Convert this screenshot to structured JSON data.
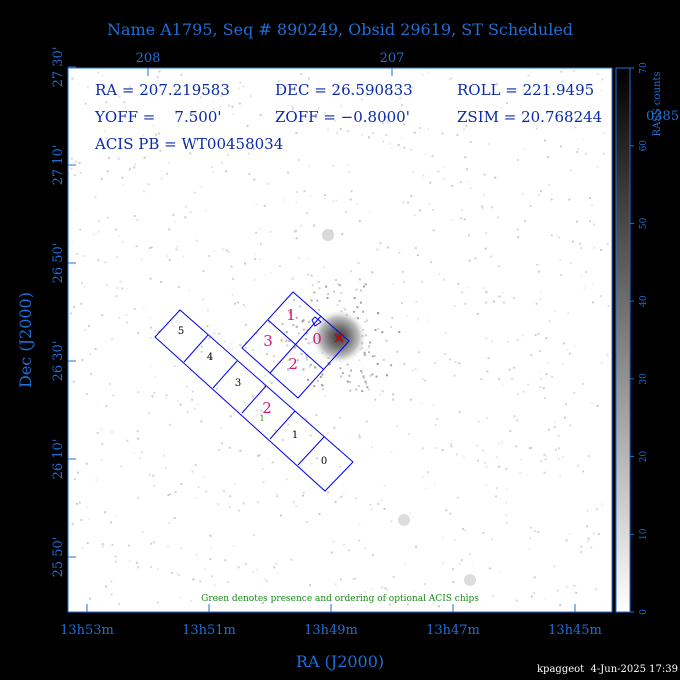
{
  "title": "Name A1795, Seq # 890249, Obsid 29619, ST Scheduled",
  "top_axis_ticks": [
    "208",
    "207"
  ],
  "info": {
    "ra": "RA = 207.219583",
    "dec": "DEC = 26.590833",
    "roll": "ROLL = 221.9495",
    "yoff": "YOFF =    7.500'",
    "zoff": "ZOFF = −0.8000'",
    "zsim": "ZSIM = 20.768244",
    "acis_pb": "ACIS PB = WT00458034"
  },
  "overflow_digits": "0385",
  "legend_note": "Green denotes presence and ordering of optional ACIS chips",
  "footer": "kpaggeot  4-Jun-2025 17:39",
  "colors": {
    "axis_blue": "#1e6fd9",
    "text_navy": "#0a2aa8",
    "chip_blue": "#0000ee",
    "chip_label_magenta": "#d4157a",
    "optional_green": "#1a8a1a",
    "target_red": "#cc0000"
  },
  "acis_i_labels": [
    "1",
    "3",
    "0",
    "2"
  ],
  "acis_s_labels": [
    "5",
    "4",
    "3",
    "2",
    "1",
    "0"
  ],
  "optional_chip_order": "1",
  "chart_data": {
    "type": "heatmap",
    "xlabel": "RA (J2000)",
    "ylabel": "Dec (J2000)",
    "x_ticks": [
      "13h53m",
      "13h51m",
      "13h49m",
      "13h47m",
      "13h45m"
    ],
    "y_ticks": [
      "25 50'",
      "26 10'",
      "26 30'",
      "26 50'",
      "27 10'",
      "27 30'"
    ],
    "colorbar": {
      "label": "RASS counts",
      "range": [
        0,
        70
      ],
      "ticks": [
        0,
        10,
        20,
        30,
        40,
        50,
        60,
        70
      ]
    }
  }
}
